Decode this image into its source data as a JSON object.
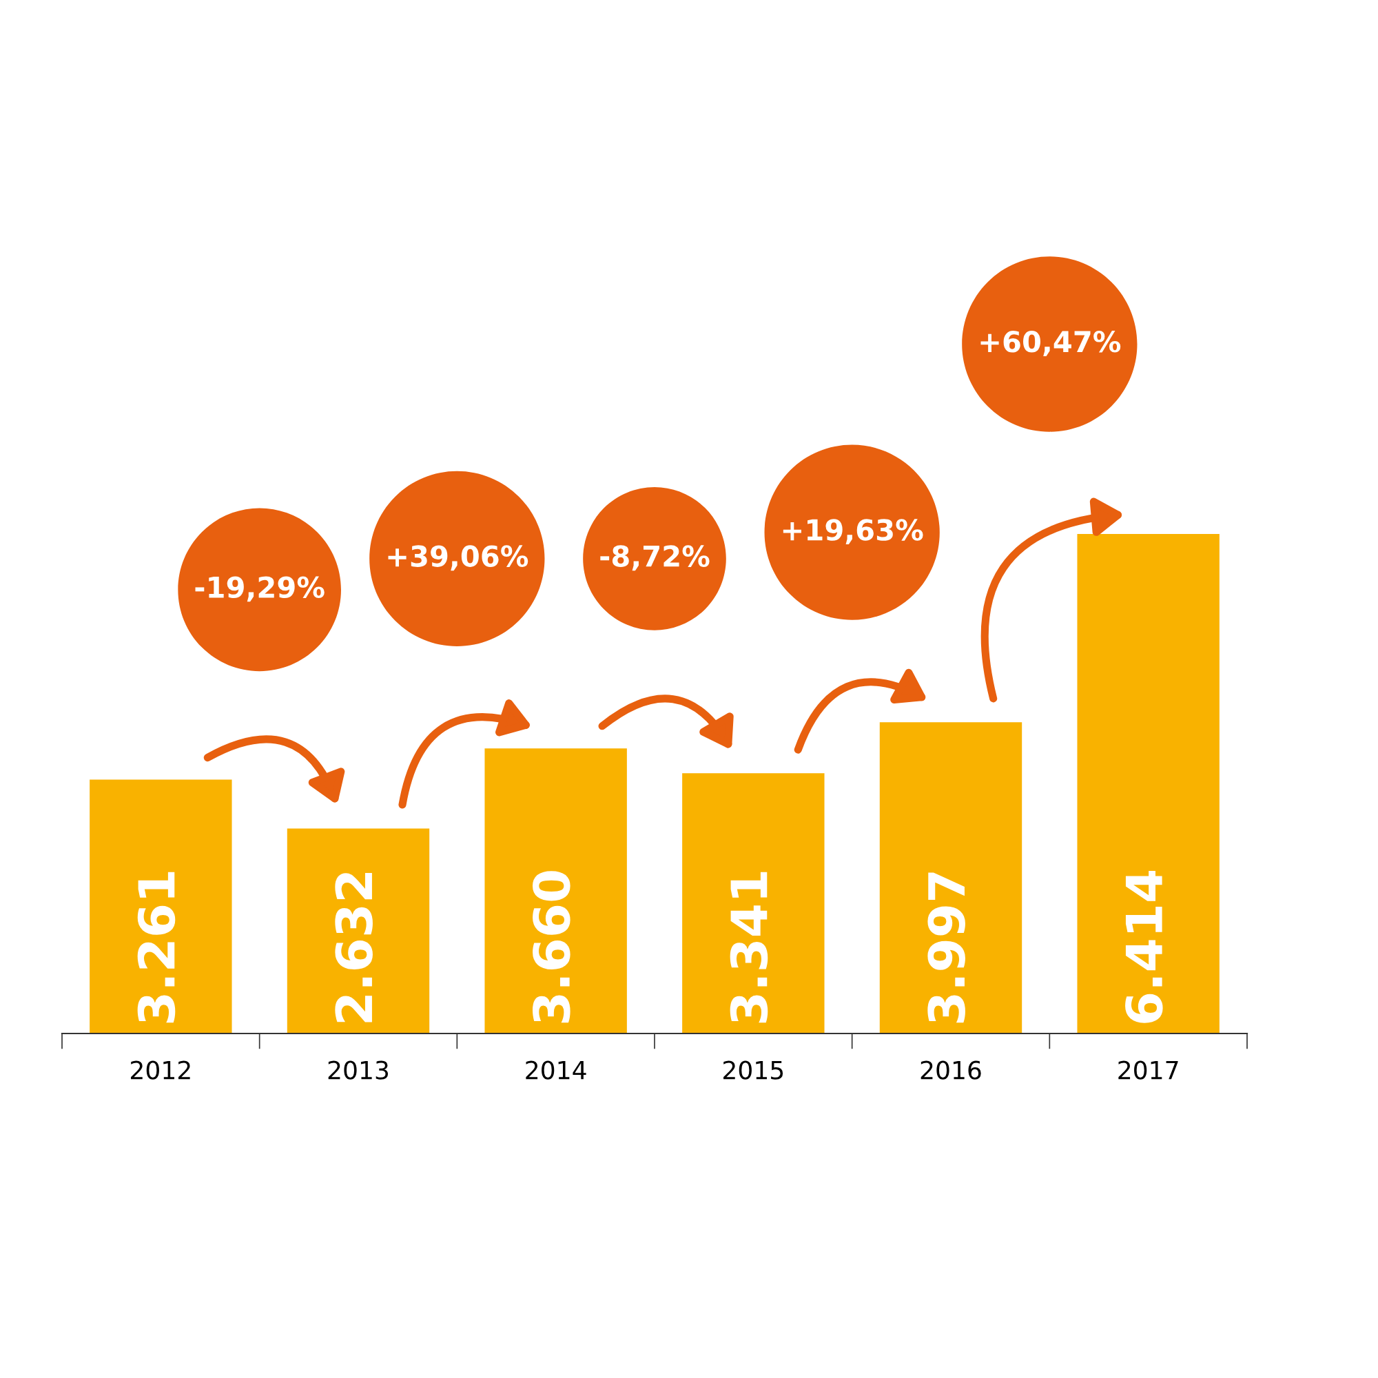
{
  "chart_data": {
    "type": "bar",
    "categories": [
      "2012",
      "2013",
      "2014",
      "2015",
      "2016",
      "2017"
    ],
    "values": [
      3261,
      2632,
      3660,
      3341,
      3997,
      6414
    ],
    "value_labels": [
      "3.261",
      "2.632",
      "3.660",
      "3.341",
      "3.997",
      "6.414"
    ],
    "color": "#f9b200",
    "annotations": [
      "-19,29%",
      "+39,06%",
      "-8,72%",
      "+19,63%",
      "+60,47%"
    ],
    "grid": false,
    "legend": false
  }
}
